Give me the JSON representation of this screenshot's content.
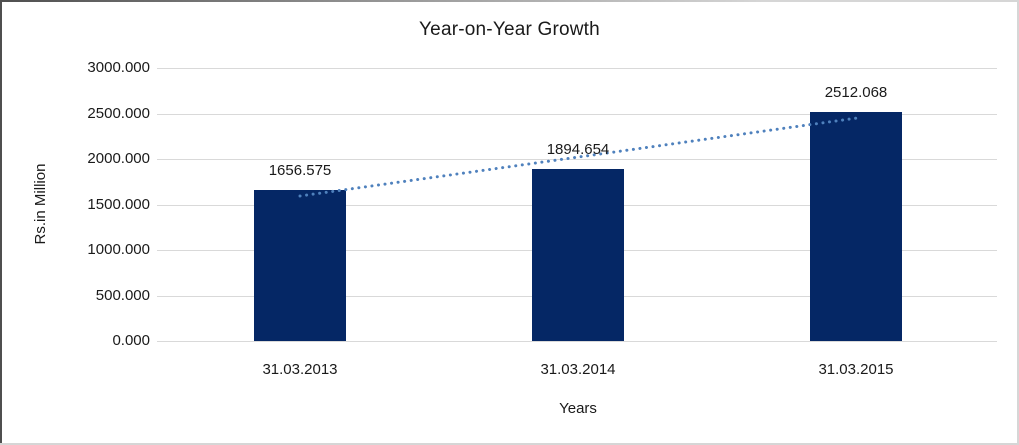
{
  "chart_data": {
    "type": "bar",
    "title": "Year-on-Year Growth",
    "xlabel": "Years",
    "ylabel": "Rs.in Million",
    "categories": [
      "31.03.2013",
      "31.03.2014",
      "31.03.2015"
    ],
    "values": [
      1656.575,
      1894.654,
      2512.068
    ],
    "data_labels": [
      "1656.575",
      "1894.654",
      "2512.068"
    ],
    "ylim": [
      0,
      3000
    ],
    "ytick_values": [
      0,
      500,
      1000,
      1500,
      2000,
      2500,
      3000
    ],
    "ytick_labels": [
      "0.000",
      "500.000",
      "1000.000",
      "1500.000",
      "2000.000",
      "2500.000",
      "3000.000"
    ],
    "grid": true,
    "legend": "none",
    "trendline": {
      "type": "linear",
      "style": "dotted",
      "color": "#4F81BD"
    },
    "colors": {
      "bar": "#052765",
      "gridline": "#D9D9D9",
      "text": "#1A1A1A",
      "background": "#FFFFFF"
    }
  }
}
